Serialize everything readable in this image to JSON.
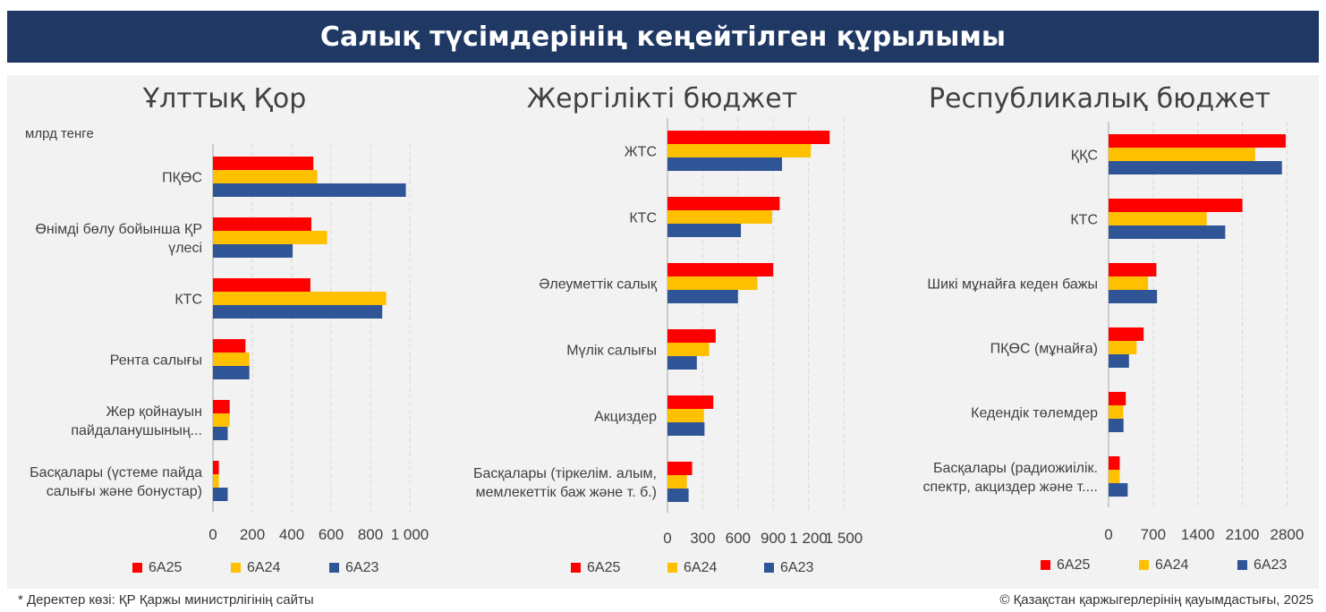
{
  "title": "Салық түсімдерінің кеңейтілген құрылымы",
  "footer": {
    "source": "* Деректер көзі: ҚР Қаржы министрлігінің сайты",
    "copyright": "© Қазақстан қаржыгерлерінің қауымдастығы, 2025"
  },
  "colors": {
    "6А25": "#ff0000",
    "6А24": "#ffc000",
    "6А23": "#2f5597"
  },
  "chart_data": [
    {
      "type": "bar",
      "orientation": "horizontal",
      "title": "Ұлттық Қор",
      "unit_label": "млрд тенге",
      "categories": [
        [
          "ПҚӨС"
        ],
        [
          "Өнімді бөлу бойынша ҚР",
          "үлесі"
        ],
        [
          "КТС"
        ],
        [
          "Рента салығы"
        ],
        [
          "Жер қойнауын",
          "пайдаланушының..."
        ],
        [
          "Басқалары (үстеме пайда",
          "салығы және бонустар)"
        ]
      ],
      "series": [
        {
          "name": "6А25",
          "values": [
            510,
            500,
            495,
            165,
            85,
            30
          ]
        },
        {
          "name": "6А24",
          "values": [
            530,
            580,
            880,
            185,
            85,
            30
          ]
        },
        {
          "name": "6А23",
          "values": [
            980,
            405,
            860,
            185,
            75,
            75
          ]
        }
      ],
      "ticks": [
        "0",
        "200",
        "400",
        "600",
        "800",
        "1 000"
      ],
      "xlim": [
        0,
        1000
      ],
      "legend": [
        "6А25",
        "6А24",
        "6А23"
      ]
    },
    {
      "type": "bar",
      "orientation": "horizontal",
      "title": "Жергілікті бюджет",
      "categories": [
        [
          "ЖТС"
        ],
        [
          "КТС"
        ],
        [
          "Әлеуметтік салық"
        ],
        [
          "Мүлік салығы"
        ],
        [
          "Акциздер"
        ],
        [
          "Басқалары (тіркелім. алым,",
          "мемлекеттік баж және т. б.)"
        ]
      ],
      "series": [
        {
          "name": "6А25",
          "values": [
            1380,
            955,
            900,
            410,
            390,
            210
          ]
        },
        {
          "name": "6А24",
          "values": [
            1220,
            890,
            765,
            355,
            310,
            165
          ]
        },
        {
          "name": "6А23",
          "values": [
            975,
            625,
            600,
            250,
            315,
            180
          ]
        }
      ],
      "ticks": [
        "0",
        "300",
        "600",
        "900",
        "1 200",
        "1 500"
      ],
      "xlim": [
        0,
        1500
      ],
      "legend": [
        "6А25",
        "6А24",
        "6А23"
      ]
    },
    {
      "type": "bar",
      "orientation": "horizontal",
      "title": "Республикалық бюджет",
      "categories": [
        [
          "ҚҚС"
        ],
        [
          "КТС"
        ],
        [
          "Шикі мұнайға кеден бажы"
        ],
        [
          "ПҚӨС (мұнайға)"
        ],
        [
          "Кедендік төлемдер"
        ],
        [
          "Басқалары (радиожиілік.",
          "спектр, акциздер және т...."
        ]
      ],
      "series": [
        {
          "name": "6А25",
          "values": [
            2780,
            2100,
            750,
            550,
            270,
            175
          ]
        },
        {
          "name": "6А24",
          "values": [
            2300,
            1540,
            620,
            440,
            230,
            175
          ]
        },
        {
          "name": "6А23",
          "values": [
            2720,
            1830,
            760,
            320,
            235,
            300
          ]
        }
      ],
      "ticks": [
        "0",
        "700",
        "1400",
        "2100",
        "2800"
      ],
      "xlim": [
        0,
        2850
      ],
      "legend": [
        "6А25",
        "6А24",
        "6А23"
      ]
    }
  ]
}
